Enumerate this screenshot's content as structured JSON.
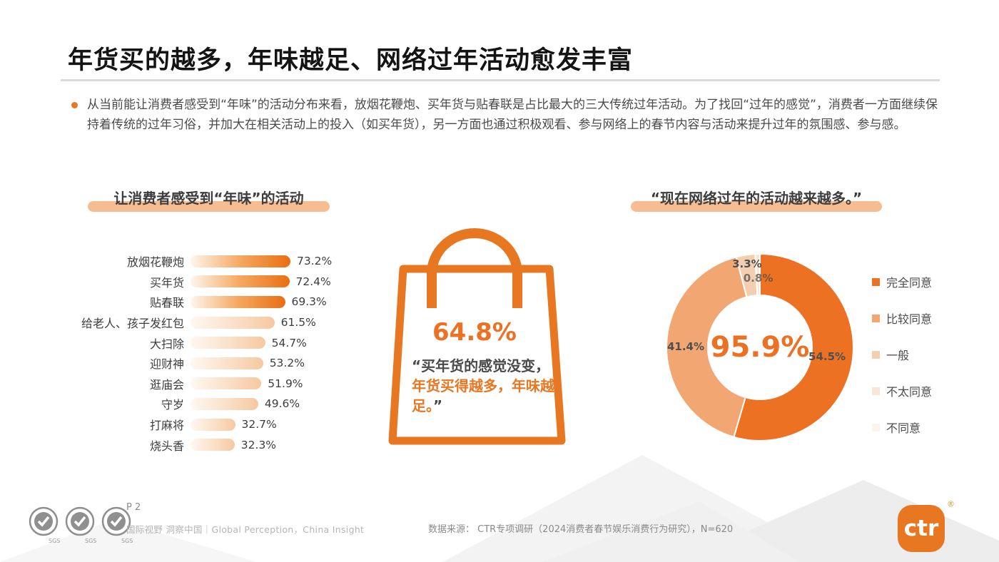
{
  "header": {
    "title": "年货买的越多，年味越足、网络过年活动愈发丰富"
  },
  "intro": {
    "bullet_text": "从当前能让消费者感受到“年味”的活动分布来看，放烟花鞭炮、买年货与贴春联是占比最大的三大传统过年活动。为了找回“过年的感觉”，消费者一方面继续保持着传统的过年习俗，并加大在相关活动上的投入（如买年货），另一方面也通过积极观看、参与网络上的春节内容与活动来提升过年的氛围感、参与感。"
  },
  "bag": {
    "value": "64.8%",
    "quote_open": "“买年货的感觉没变，",
    "quote_highlight": "年货买得越多，年味越足。",
    "quote_close": "”"
  },
  "footer": {
    "page": "P 2",
    "tagline": "国际视野 洞察中国｜Global Perception，China Insight",
    "source": "数据来源： CTR专项调研（2024消费者春节娱乐消费行为研究），N=620",
    "brand": "ctr",
    "brand_mark": "®",
    "cert_label": "SGS"
  },
  "colors": {
    "accent": "#E87722",
    "bar_strong_end": "#E96E12",
    "bar_light_end": "#F6C8A0",
    "highlight_underline": "#F6BD92",
    "donut_center_text": "#ED7123"
  },
  "chart_data": [
    {
      "type": "bar",
      "orientation": "horizontal",
      "title": "让消费者感受到“年味”的活动",
      "categories": [
        "放烟花鞭炮",
        "买年货",
        "贴春联",
        "给老人、孩子发红包",
        "大扫除",
        "迎财神",
        "逛庙会",
        "守岁",
        "打麻将",
        "烧头香"
      ],
      "values": [
        73.2,
        72.4,
        69.3,
        61.5,
        54.7,
        53.2,
        51.9,
        49.6,
        32.7,
        32.3
      ],
      "value_suffix": "%",
      "highlight_top_n": 3,
      "xlim": [
        0,
        80
      ],
      "grid": false
    },
    {
      "type": "pie",
      "subtype": "donut",
      "title": "“现在网络过年的活动越来越多。”",
      "center_label": "95.9%",
      "segments": [
        {
          "label": "完全同意",
          "value": 54.5,
          "color": "#ED7123"
        },
        {
          "label": "比较同意",
          "value": 41.4,
          "color": "#F2A672"
        },
        {
          "label": "一般",
          "value": 3.3,
          "color": "#F3CEAF"
        },
        {
          "label": "不太同意",
          "value": 0.8,
          "color": "#F8E6D7"
        },
        {
          "label": "不同意",
          "value": 0.0,
          "color": "#FDF4EC"
        }
      ],
      "legend_position": "right",
      "start_angle": "top",
      "direction": "clockwise"
    }
  ]
}
